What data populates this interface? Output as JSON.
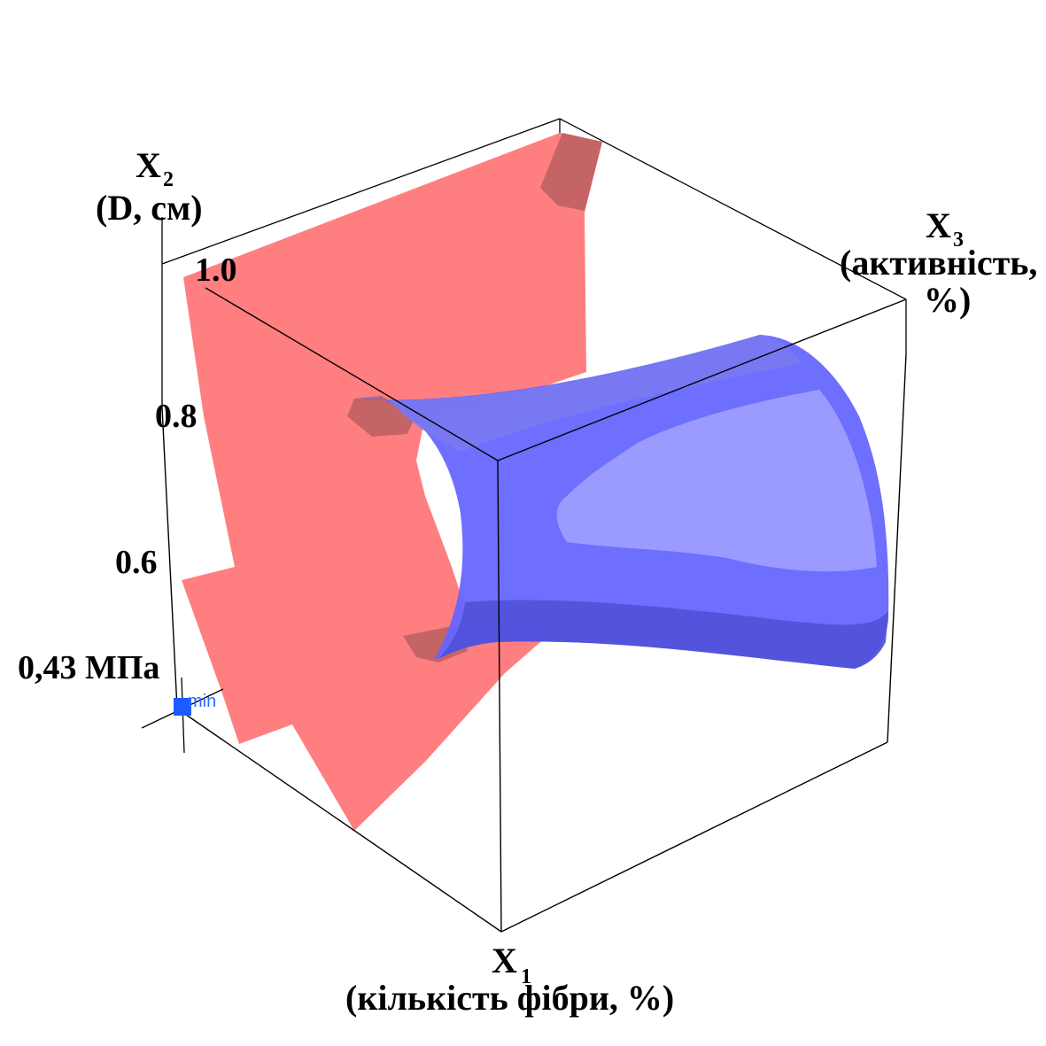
{
  "chart_data": {
    "type": "isosurface-3d",
    "axes": {
      "x1": {
        "symbol": "X",
        "index": "1",
        "label": "(кількість фібри, %)"
      },
      "x2": {
        "symbol": "X",
        "index": "2",
        "label": "(D, см)"
      },
      "x3": {
        "symbol": "X",
        "index": "3",
        "label_line1": "(активність,",
        "label_line2": "%)"
      }
    },
    "x2_ticks": [
      "0.6",
      "0.8",
      "1.0"
    ],
    "x2_tick_values": [
      0.6,
      0.8,
      1.0
    ],
    "marker": {
      "value_label": "0,43 МПа",
      "tag": "min"
    },
    "colors": {
      "red_surface": "#ff7f80",
      "red_shade": "#c46466",
      "blue_surface": "#6666ff",
      "blue_light": "#9b9bff",
      "blue_dark": "#4a4ae6",
      "marker": "#1a5cff",
      "box": "#000000"
    }
  }
}
